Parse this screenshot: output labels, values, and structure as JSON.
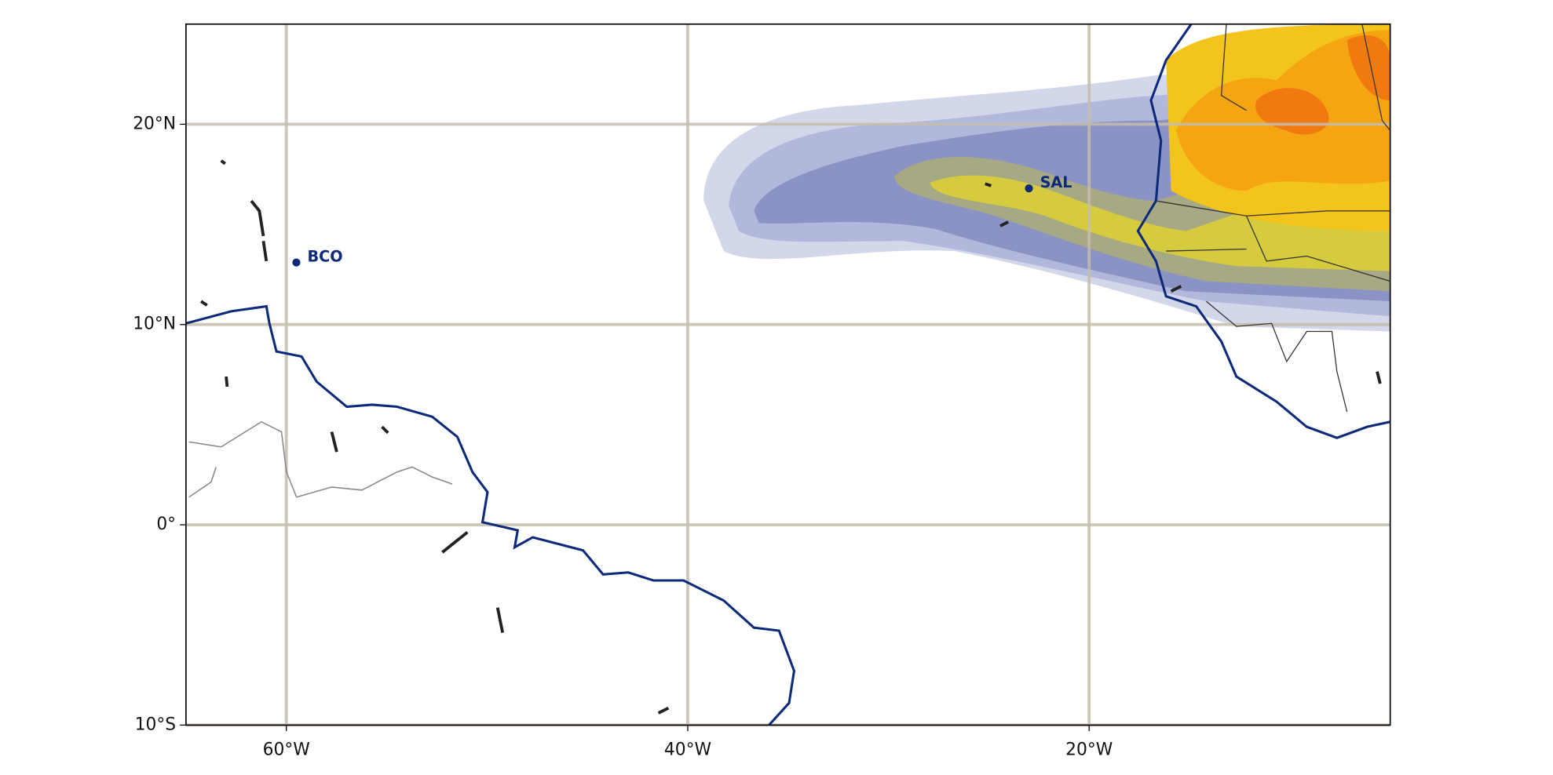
{
  "chart_data": {
    "type": "map",
    "xlim": [
      -65,
      -5
    ],
    "ylim": [
      -10,
      25
    ],
    "xticks": [
      {
        "value": -60,
        "label": "60°W"
      },
      {
        "value": -40,
        "label": "40°W"
      },
      {
        "value": -20,
        "label": "20°W"
      }
    ],
    "yticks": [
      {
        "value": -10,
        "label": "10°S"
      },
      {
        "value": 0,
        "label": "0°"
      },
      {
        "value": 10,
        "label": "10°N"
      },
      {
        "value": 20,
        "label": "20°N"
      }
    ],
    "grid": true,
    "color": "#0d2a7a",
    "stations": [
      {
        "name": "BCO",
        "x": -59.5,
        "y": 13.1
      },
      {
        "name": "SAL",
        "x": -23,
        "y": 16.8
      }
    ]
  }
}
